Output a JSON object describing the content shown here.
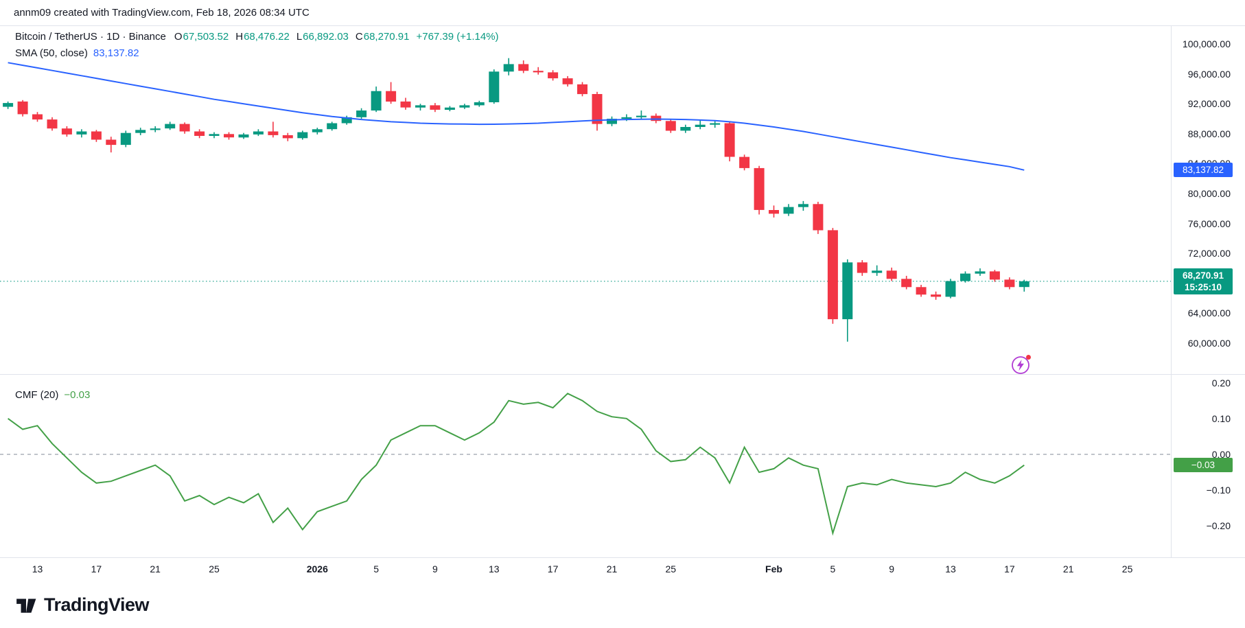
{
  "attribution": "annm09 created with TradingView.com, Feb 18, 2026 08:34 UTC",
  "legend": {
    "symbol": "Bitcoin / TetherUS · 1D · Binance",
    "ohlc": {
      "o_label": "O",
      "o": "67,503.52",
      "h_label": "H",
      "h": "68,476.22",
      "l_label": "L",
      "l": "66,892.03",
      "c_label": "C",
      "c": "68,270.91"
    },
    "change": "+767.39 (+1.14%)",
    "sma_label": "SMA (50, close)",
    "sma_value": "83,137.82",
    "cmf_label": "CMF (20)",
    "cmf_value": "−0.03"
  },
  "badges": {
    "sma": "83,137.82",
    "close": "68,270.91",
    "countdown": "15:25:10",
    "cmf": "−0.03"
  },
  "footer": {
    "brand": "TradingView"
  },
  "colors": {
    "up": "#089981",
    "down": "#f23645",
    "sma": "#2962ff",
    "cmf": "#43a047",
    "zero_line": "#9aa0aa",
    "axis_text": "#131722",
    "border": "#e0e3eb",
    "lightning": "#b13bd4",
    "alert_dot": "#f23645"
  },
  "time_axis": [
    {
      "label": "13",
      "i": 2
    },
    {
      "label": "17",
      "i": 6
    },
    {
      "label": "21",
      "i": 10
    },
    {
      "label": "25",
      "i": 14
    },
    {
      "label": "2026",
      "i": 21,
      "bold": true
    },
    {
      "label": "5",
      "i": 25
    },
    {
      "label": "9",
      "i": 29
    },
    {
      "label": "13",
      "i": 33
    },
    {
      "label": "17",
      "i": 37
    },
    {
      "label": "21",
      "i": 41
    },
    {
      "label": "25",
      "i": 45
    },
    {
      "label": "Feb",
      "i": 52,
      "bold": true
    },
    {
      "label": "5",
      "i": 56
    },
    {
      "label": "9",
      "i": 60
    },
    {
      "label": "13",
      "i": 64
    },
    {
      "label": "17",
      "i": 68
    },
    {
      "label": "21",
      "i": 72
    },
    {
      "label": "25",
      "i": 76
    }
  ],
  "chart_data": {
    "type": "candlestick",
    "title": "Bitcoin / TetherUS · 1D · Binance",
    "panes": [
      "price candles with SMA(50) overlay",
      "CMF(20) oscillator"
    ],
    "close_price": 68270.91,
    "sma_last": 83137.82,
    "cmf_last": -0.03,
    "price_ticks": [
      100000,
      96000,
      92000,
      88000,
      84000,
      80000,
      76000,
      72000,
      64000,
      60000
    ],
    "cmf_ticks": [
      0.2,
      0.1,
      0,
      -0.1,
      -0.2
    ],
    "candles": [
      [
        91600,
        92300,
        91300,
        92100
      ],
      [
        92300,
        92500,
        90300,
        90600
      ],
      [
        90600,
        90900,
        89600,
        89900
      ],
      [
        89900,
        90200,
        88400,
        88700
      ],
      [
        88700,
        89000,
        87600,
        87900
      ],
      [
        87900,
        88600,
        87500,
        88300
      ],
      [
        88300,
        88500,
        86900,
        87200
      ],
      [
        87200,
        87600,
        85500,
        86500
      ],
      [
        86500,
        88400,
        86200,
        88100
      ],
      [
        88100,
        88800,
        87800,
        88500
      ],
      [
        88500,
        89000,
        88200,
        88700
      ],
      [
        88700,
        89600,
        88500,
        89300
      ],
      [
        89300,
        89500,
        88000,
        88300
      ],
      [
        88300,
        88600,
        87400,
        87700
      ],
      [
        87700,
        88200,
        87400,
        87950
      ],
      [
        87950,
        88200,
        87200,
        87500
      ],
      [
        87500,
        88100,
        87300,
        87900
      ],
      [
        87900,
        88600,
        87700,
        88300
      ],
      [
        88300,
        89600,
        87500,
        87800
      ],
      [
        87800,
        88100,
        87000,
        87400
      ],
      [
        87400,
        88400,
        87200,
        88200
      ],
      [
        88200,
        88800,
        87900,
        88600
      ],
      [
        88600,
        89600,
        88400,
        89400
      ],
      [
        89400,
        90400,
        89200,
        90200
      ],
      [
        90200,
        91400,
        90000,
        91100
      ],
      [
        91100,
        94300,
        90900,
        93700
      ],
      [
        93700,
        94900,
        92000,
        92300
      ],
      [
        92300,
        92800,
        91200,
        91500
      ],
      [
        91500,
        92000,
        91100,
        91800
      ],
      [
        91800,
        92100,
        90900,
        91200
      ],
      [
        91200,
        91700,
        91000,
        91500
      ],
      [
        91500,
        92000,
        91300,
        91800
      ],
      [
        91800,
        92400,
        91600,
        92200
      ],
      [
        92200,
        96600,
        92000,
        96300
      ],
      [
        96300,
        98100,
        95800,
        97300
      ],
      [
        97300,
        97800,
        96100,
        96400
      ],
      [
        96400,
        96900,
        95900,
        96200
      ],
      [
        96200,
        96500,
        95100,
        95400
      ],
      [
        95400,
        95700,
        94300,
        94600
      ],
      [
        94600,
        94900,
        93000,
        93300
      ],
      [
        93300,
        93600,
        88400,
        89300
      ],
      [
        89300,
        90300,
        89000,
        90000
      ],
      [
        90000,
        90600,
        89700,
        90200
      ],
      [
        90200,
        91100,
        89900,
        90400
      ],
      [
        90400,
        90700,
        89400,
        89700
      ],
      [
        89700,
        89900,
        88100,
        88400
      ],
      [
        88400,
        89200,
        88100,
        88900
      ],
      [
        88900,
        89800,
        88600,
        89200
      ],
      [
        89200,
        89700,
        88800,
        89400
      ],
      [
        89400,
        89600,
        84300,
        84900
      ],
      [
        84900,
        85200,
        83100,
        83400
      ],
      [
        83400,
        83700,
        77200,
        77800
      ],
      [
        77800,
        78400,
        76800,
        77300
      ],
      [
        77300,
        78600,
        77000,
        78200
      ],
      [
        78200,
        79000,
        77700,
        78600
      ],
      [
        78600,
        78900,
        74600,
        75100
      ],
      [
        75100,
        75400,
        62600,
        63200
      ],
      [
        63200,
        71200,
        60200,
        70800
      ],
      [
        70800,
        71100,
        69000,
        69400
      ],
      [
        69400,
        70400,
        69000,
        69700
      ],
      [
        69700,
        70100,
        68300,
        68600
      ],
      [
        68600,
        69000,
        67200,
        67500
      ],
      [
        67500,
        67800,
        66200,
        66500
      ],
      [
        66500,
        66900,
        65800,
        66200
      ],
      [
        66200,
        68600,
        66000,
        68300
      ],
      [
        68300,
        69600,
        68100,
        69300
      ],
      [
        69300,
        70000,
        69000,
        69600
      ],
      [
        69600,
        69800,
        68200,
        68500
      ],
      [
        68500,
        68800,
        67200,
        67503.52
      ],
      [
        67503.52,
        68476.22,
        66892.03,
        68270.91
      ]
    ],
    "sma50": [
      97500,
      97150,
      96800,
      96450,
      96100,
      95750,
      95400,
      95050,
      94700,
      94350,
      94000,
      93650,
      93300,
      92950,
      92600,
      92300,
      92000,
      91700,
      91400,
      91100,
      90800,
      90550,
      90300,
      90100,
      89900,
      89750,
      89600,
      89500,
      89400,
      89350,
      89300,
      89280,
      89260,
      89270,
      89300,
      89350,
      89400,
      89500,
      89600,
      89700,
      89800,
      89850,
      89900,
      89930,
      89950,
      89930,
      89900,
      89830,
      89750,
      89600,
      89400,
      89150,
      88900,
      88600,
      88300,
      87950,
      87600,
      87250,
      86900,
      86550,
      86200,
      85850,
      85500,
      85150,
      84800,
      84500,
      84200,
      83900,
      83600,
      83137.82
    ],
    "cmf20": [
      0.1,
      0.07,
      0.08,
      0.03,
      -0.01,
      -0.05,
      -0.08,
      -0.075,
      -0.06,
      -0.045,
      -0.03,
      -0.06,
      -0.13,
      -0.115,
      -0.14,
      -0.12,
      -0.135,
      -0.11,
      -0.19,
      -0.15,
      -0.21,
      -0.16,
      -0.145,
      -0.13,
      -0.07,
      -0.03,
      0.04,
      0.06,
      0.08,
      0.08,
      0.06,
      0.04,
      0.06,
      0.09,
      0.15,
      0.14,
      0.145,
      0.13,
      0.17,
      0.15,
      0.12,
      0.105,
      0.1,
      0.07,
      0.01,
      -0.02,
      -0.015,
      0.02,
      -0.01,
      -0.08,
      0.02,
      -0.05,
      -0.04,
      -0.01,
      -0.03,
      -0.04,
      -0.22,
      -0.09,
      -0.08,
      -0.085,
      -0.07,
      -0.08,
      -0.085,
      -0.09,
      -0.08,
      -0.05,
      -0.07,
      -0.08,
      -0.06,
      -0.03
    ]
  }
}
